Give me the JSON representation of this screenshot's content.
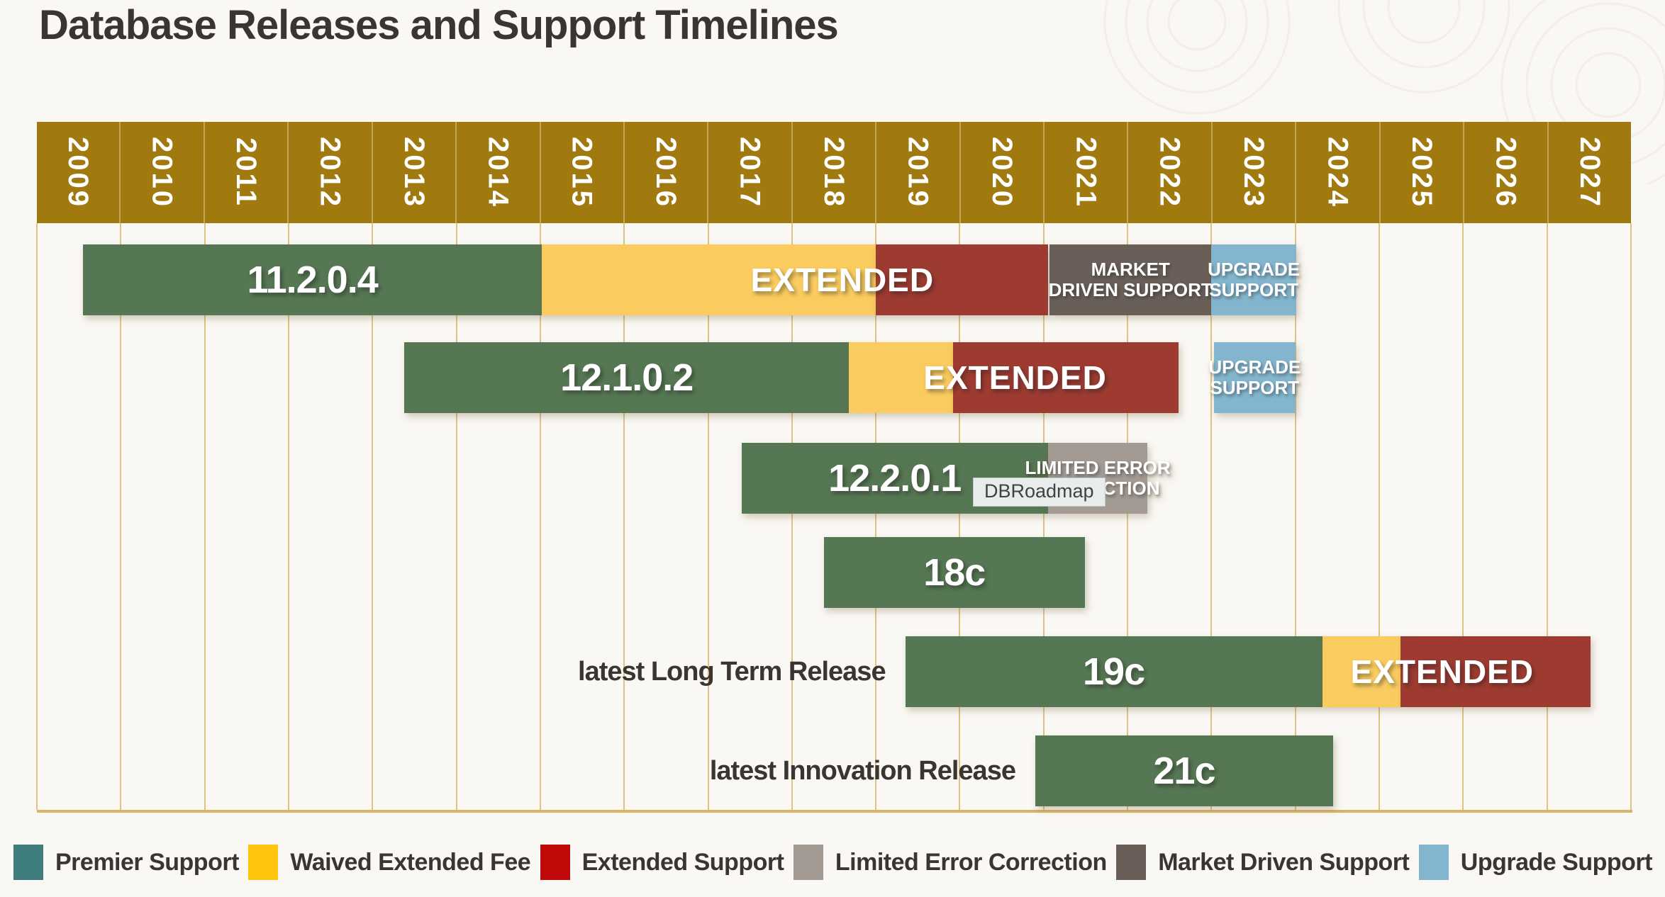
{
  "title": "Database Releases and Support Timelines",
  "tooltip": {
    "text": "DBRoadmap"
  },
  "colors": {
    "background": "#FAF8F4",
    "text_dark": "#3A3531",
    "header_gold": "#A0790F",
    "grid_gold": "#D9B465",
    "bar_premier": "#567753",
    "bar_waived": "#FACC60",
    "bar_extended": "#9D3B31",
    "bar_limited": "#A39A94",
    "bar_market": "#6A5F58",
    "bar_upgrade": "#83B6CE",
    "legend_premier": "#3E7D7C",
    "legend_waived": "#FFC40C",
    "legend_extended": "#C00A0A",
    "legend_limited": "#A39A94",
    "legend_market": "#6A5F58",
    "legend_upgrade": "#83B6CE"
  },
  "legend": [
    {
      "key": "premier",
      "label": "Premier Support"
    },
    {
      "key": "waived",
      "label": "Waived Extended Fee"
    },
    {
      "key": "extended",
      "label": "Extended Support"
    },
    {
      "key": "limited",
      "label": "Limited Error Correction"
    },
    {
      "key": "market",
      "label": "Market Driven Support"
    },
    {
      "key": "upgrade",
      "label": "Upgrade Support"
    }
  ],
  "chart_data": {
    "type": "gantt-timeline",
    "x_axis": {
      "years": [
        "2009",
        "2010",
        "2011",
        "2012",
        "2013",
        "2014",
        "2015",
        "2016",
        "2017",
        "2018",
        "2019",
        "2020",
        "2021",
        "2022",
        "2023",
        "2024",
        "2025",
        "2026",
        "2027"
      ],
      "range": [
        2009,
        2028
      ]
    },
    "rows": [
      {
        "name": "11.2.0.4",
        "row_label": "",
        "segments": [
          {
            "support": "premier",
            "start": 2009.55,
            "end": 2015.02,
            "lines": [
              "11.2.0.4"
            ],
            "text_size": "big"
          },
          {
            "support": "waived",
            "start": 2015.02,
            "end": 2019.0
          },
          {
            "support": "extended",
            "start": 2019.0,
            "end": 2021.05
          },
          {
            "support": "market",
            "start": 2021.07,
            "end": 2023.0,
            "lines": [
              "MARKET",
              "DRIVEN SUPPORT"
            ],
            "text_size": "small"
          },
          {
            "support": "upgrade",
            "start": 2023.0,
            "end": 2024.01,
            "lines": [
              "UPGRADE",
              "SUPPORT"
            ],
            "text_size": "small"
          }
        ],
        "overlay": {
          "text": "EXTENDED",
          "center": 2018.6
        }
      },
      {
        "name": "12.1.0.2",
        "row_label": "",
        "segments": [
          {
            "support": "premier",
            "start": 2013.38,
            "end": 2018.68,
            "lines": [
              "12.1.0.2"
            ],
            "text_size": "big"
          },
          {
            "support": "waived",
            "start": 2018.68,
            "end": 2019.92
          },
          {
            "support": "extended",
            "start": 2019.92,
            "end": 2022.61
          },
          {
            "support": "upgrade",
            "start": 2023.03,
            "end": 2024.0,
            "lines": [
              "UPGRADE",
              "SUPPORT"
            ],
            "text_size": "small"
          }
        ],
        "overlay": {
          "text": "EXTENDED",
          "center": 2020.66
        }
      },
      {
        "name": "12.2.0.1",
        "row_label": "",
        "segments": [
          {
            "support": "premier",
            "start": 2017.4,
            "end": 2021.05,
            "lines": [
              "12.2.0.1"
            ],
            "text_size": "big"
          },
          {
            "support": "limited",
            "start": 2021.05,
            "end": 2022.24,
            "lines": [
              "LIMITED ERROR",
              "CORRECTION"
            ],
            "text_size": "small"
          }
        ]
      },
      {
        "name": "18c",
        "row_label": "",
        "segments": [
          {
            "support": "premier",
            "start": 2018.38,
            "end": 2021.49,
            "lines": [
              "18c"
            ],
            "text_size": "big"
          }
        ]
      },
      {
        "name": "19c",
        "row_label": "latest Long Term Release",
        "segments": [
          {
            "support": "premier",
            "start": 2019.35,
            "end": 2024.32,
            "lines": [
              "19c"
            ],
            "text_size": "big"
          },
          {
            "support": "waived",
            "start": 2024.32,
            "end": 2025.25
          },
          {
            "support": "extended",
            "start": 2025.25,
            "end": 2027.52
          }
        ],
        "overlay": {
          "text": "EXTENDED",
          "center": 2025.75
        }
      },
      {
        "name": "21c",
        "row_label": "latest Innovation Release",
        "segments": [
          {
            "support": "premier",
            "start": 2020.9,
            "end": 2024.45,
            "lines": [
              "21c"
            ],
            "text_size": "big"
          }
        ]
      }
    ]
  }
}
